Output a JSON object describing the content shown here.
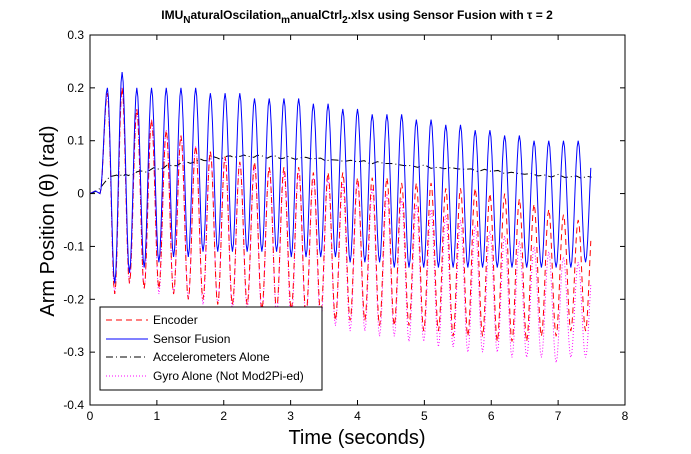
{
  "chart_data": {
    "type": "line",
    "title": {
      "base": "IMU",
      "sub1": "N",
      "mid1": "aturalOscilation",
      "sub2": "m",
      "mid2": "anualCtrl",
      "sub3": "2",
      "tail": ".xlsx using Sensor Fusion with ",
      "tau": "τ",
      "tail2": " = 2"
    },
    "xlabel": "Time (seconds)",
    "ylabel": "Arm Position (θ) (rad)",
    "xlim": [
      0,
      8
    ],
    "ylim": [
      -0.4,
      0.3
    ],
    "xticks": [
      "0",
      "1",
      "2",
      "3",
      "4",
      "5",
      "6",
      "7",
      "8"
    ],
    "yticks": [
      "0.3",
      "0.2",
      "0.1",
      "0",
      "-0.1",
      "-0.2",
      "-0.3",
      "-0.4"
    ],
    "grid": false,
    "legend_position": "bottom-left",
    "series": [
      {
        "name": "Encoder",
        "color": "#ff0000",
        "dash": "dashed",
        "model": "oscillation",
        "start_time": 0.15,
        "end_time": 7.5,
        "period_s": 0.22,
        "peaks_at_cycle_start": [
          0.19,
          0.2,
          0.16,
          0.14,
          0.12,
          0.11,
          0.09,
          0.08,
          0.07,
          0.06,
          0.06,
          0.05,
          0.05,
          0.05,
          0.04,
          0.04,
          0.04,
          0.03,
          0.03,
          0.03,
          0.02,
          0.02,
          0.02,
          0.01,
          0.01,
          0.01,
          0.0,
          0.0,
          -0.01,
          -0.02,
          -0.03,
          -0.04,
          -0.05,
          -0.05
        ],
        "troughs_at_cycle_start": [
          -0.19,
          -0.17,
          -0.18,
          -0.18,
          -0.19,
          -0.2,
          -0.2,
          -0.21,
          -0.21,
          -0.21,
          -0.22,
          -0.22,
          -0.22,
          -0.23,
          -0.23,
          -0.24,
          -0.24,
          -0.24,
          -0.25,
          -0.25,
          -0.25,
          -0.26,
          -0.26,
          -0.27,
          -0.27,
          -0.27,
          -0.28,
          -0.28,
          -0.28,
          -0.27,
          -0.27,
          -0.26,
          -0.26,
          -0.25
        ]
      },
      {
        "name": "Sensor Fusion",
        "color": "#0000ff",
        "dash": "solid",
        "model": "oscillation",
        "start_time": 0.15,
        "end_time": 7.5,
        "period_s": 0.22,
        "peaks_at_cycle_start": [
          0.2,
          0.23,
          0.2,
          0.2,
          0.2,
          0.2,
          0.2,
          0.19,
          0.19,
          0.19,
          0.18,
          0.18,
          0.18,
          0.18,
          0.17,
          0.17,
          0.16,
          0.16,
          0.15,
          0.15,
          0.15,
          0.14,
          0.14,
          0.13,
          0.13,
          0.12,
          0.12,
          0.11,
          0.11,
          0.1,
          0.1,
          0.1,
          0.1,
          0.09
        ],
        "troughs_at_cycle_start": [
          -0.17,
          -0.15,
          -0.14,
          -0.13,
          -0.12,
          -0.12,
          -0.11,
          -0.11,
          -0.11,
          -0.11,
          -0.11,
          -0.11,
          -0.12,
          -0.12,
          -0.12,
          -0.12,
          -0.13,
          -0.13,
          -0.13,
          -0.14,
          -0.14,
          -0.14,
          -0.14,
          -0.14,
          -0.14,
          -0.14,
          -0.14,
          -0.14,
          -0.14,
          -0.14,
          -0.14,
          -0.14,
          -0.13,
          -0.13
        ]
      },
      {
        "name": "Accelerometers Alone",
        "color": "#000000",
        "dash": "dashdot",
        "x": [
          0,
          0.05,
          0.1,
          0.15,
          0.2,
          0.25,
          0.3,
          0.4,
          0.5,
          0.6,
          0.8,
          1.0,
          1.2,
          1.4,
          1.6,
          1.8,
          2.0,
          2.2,
          2.4,
          2.6,
          2.8,
          3.0,
          3.3,
          3.6,
          4.0,
          4.4,
          4.8,
          5.2,
          5.6,
          6.0,
          6.4,
          6.8,
          7.2,
          7.5
        ],
        "y": [
          0.0,
          0.002,
          0.005,
          0.01,
          0.018,
          0.026,
          0.032,
          0.035,
          0.033,
          0.036,
          0.042,
          0.047,
          0.053,
          0.058,
          0.062,
          0.066,
          0.068,
          0.07,
          0.07,
          0.07,
          0.069,
          0.068,
          0.066,
          0.064,
          0.06,
          0.057,
          0.053,
          0.05,
          0.046,
          0.042,
          0.038,
          0.035,
          0.032,
          0.031
        ],
        "wiggle": 0.006
      },
      {
        "name": "Gyro Alone (Not Mod2Pi-ed)",
        "color": "#ff00ff",
        "dash": "dotted",
        "model": "oscillation",
        "start_time": 0.15,
        "end_time": 7.5,
        "period_s": 0.22,
        "peaks_at_cycle_start": [
          0.19,
          0.2,
          0.16,
          0.14,
          0.12,
          0.11,
          0.09,
          0.08,
          0.07,
          0.06,
          0.05,
          0.05,
          0.04,
          0.04,
          0.03,
          0.03,
          0.02,
          0.02,
          0.01,
          0.0,
          -0.01,
          -0.02,
          -0.03,
          -0.04,
          -0.05,
          -0.06,
          -0.07,
          -0.08,
          -0.09,
          -0.1,
          -0.11,
          -0.12,
          -0.13,
          -0.14
        ],
        "troughs_at_cycle_start": [
          -0.19,
          -0.17,
          -0.18,
          -0.19,
          -0.19,
          -0.2,
          -0.21,
          -0.21,
          -0.22,
          -0.22,
          -0.23,
          -0.23,
          -0.24,
          -0.24,
          -0.25,
          -0.25,
          -0.26,
          -0.26,
          -0.27,
          -0.27,
          -0.28,
          -0.28,
          -0.29,
          -0.29,
          -0.3,
          -0.3,
          -0.3,
          -0.31,
          -0.31,
          -0.31,
          -0.32,
          -0.31,
          -0.31,
          -0.3
        ]
      }
    ]
  }
}
